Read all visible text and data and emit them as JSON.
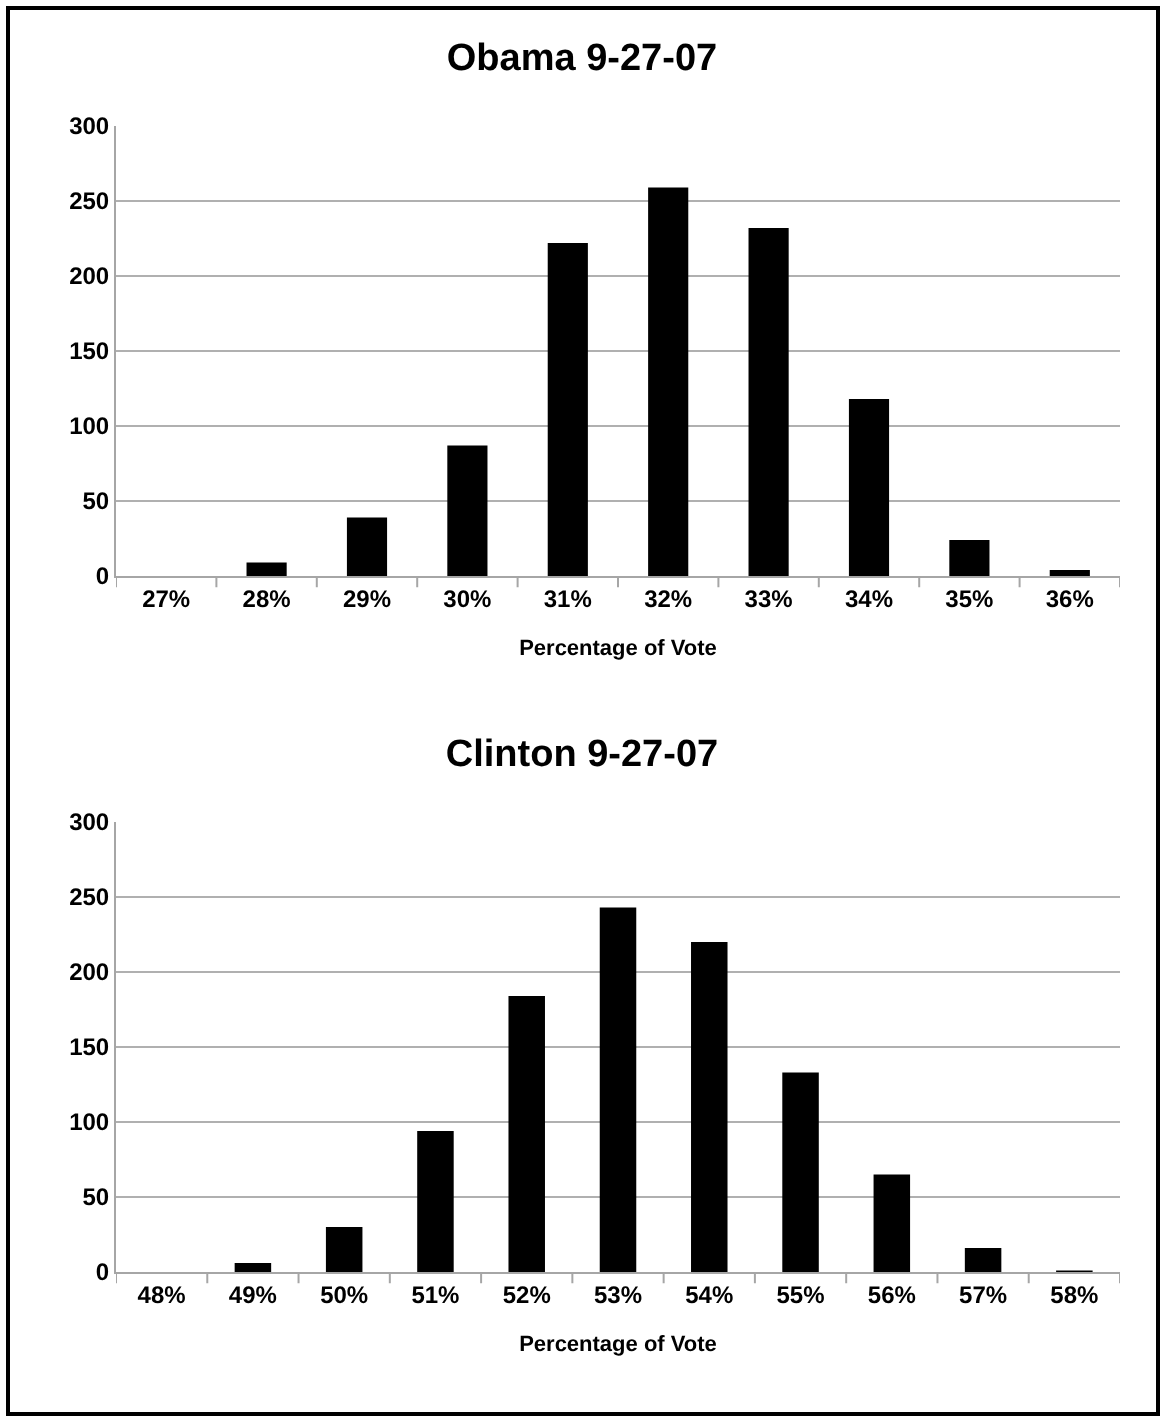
{
  "chart_data": [
    {
      "type": "bar",
      "title": "Obama 9-27-07",
      "xlabel": "Percentage of Vote",
      "categories": [
        "27%",
        "28%",
        "29%",
        "30%",
        "31%",
        "32%",
        "33%",
        "34%",
        "35%",
        "36%"
      ],
      "series": [
        {
          "color": "#000000",
          "values": [
            0,
            9,
            39,
            87,
            222,
            259,
            232,
            118,
            24,
            4
          ]
        }
      ],
      "ylim": [
        0,
        300
      ],
      "yticks": [
        0,
        50,
        100,
        150,
        200,
        250,
        300
      ],
      "grid": "y",
      "legend": false
    },
    {
      "type": "bar",
      "title": "Clinton 9-27-07",
      "xlabel": "Percentage of Vote",
      "categories": [
        "48%",
        "49%",
        "50%",
        "51%",
        "52%",
        "53%",
        "54%",
        "55%",
        "56%",
        "57%",
        "58%"
      ],
      "series": [
        {
          "color": "#000000",
          "values": [
            0,
            6,
            30,
            94,
            184,
            243,
            220,
            133,
            65,
            16,
            1
          ]
        }
      ],
      "ylim": [
        0,
        300
      ],
      "yticks": [
        0,
        50,
        100,
        150,
        200,
        250,
        300
      ],
      "grid": "y",
      "legend": false
    }
  ]
}
